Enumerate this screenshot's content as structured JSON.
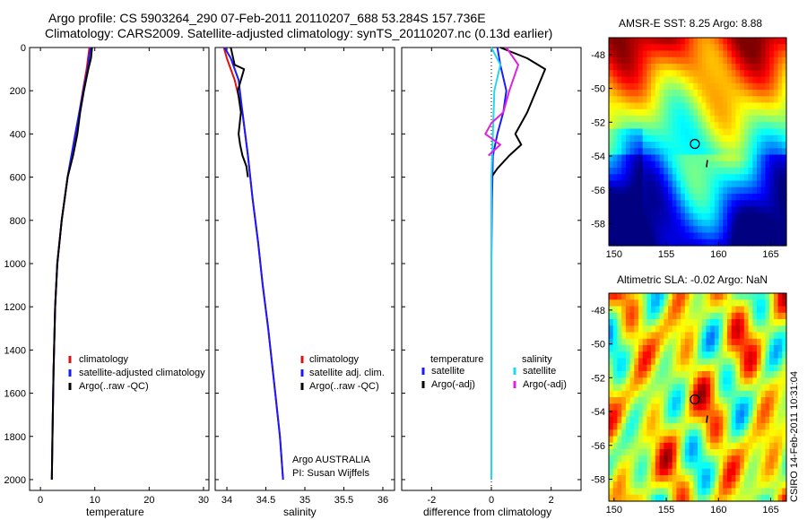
{
  "header": {
    "line1": "Argo profile: CS 5903264_290 07-Feb-2011 20110207_688 53.284S 157.736E",
    "line2": "Climatology: CARS2009. Satellite-adjusted climatology: synTS_20110207.nc (0.13d earlier)"
  },
  "colors": {
    "climatology": "#e01010",
    "satellite": "#1a1aff",
    "argo": "#000000",
    "sal_satellite": "#22d8f0",
    "sal_argo": "#e020e0"
  },
  "panels": {
    "temperature": {
      "xlabel": "temperature"
    },
    "salinity": {
      "xlabel": "salinity"
    },
    "difference": {
      "xlabel": "difference from climatology"
    },
    "sst_map": {
      "title": "AMSR-E SST: 8.25  Argo: 8.88"
    },
    "sla_map": {
      "title": "Altimetric SLA: -0.02  Argo: NaN"
    }
  },
  "credit": "CSIRO 14-Feb-2011 10:31:04",
  "chart_data": [
    {
      "type": "line",
      "panel": "temperature",
      "xlabel": "temperature",
      "xlim": [
        -2,
        31
      ],
      "ylim": [
        2050,
        0
      ],
      "xticks": [
        "0",
        "10",
        "20",
        "30"
      ],
      "yticks": [
        "0",
        "200",
        "400",
        "600",
        "800",
        "1000",
        "1200",
        "1400",
        "1600",
        "1800",
        "2000"
      ],
      "legend": [
        "climatology",
        "satellite-adjusted climatology",
        "Argo(..raw -QC)"
      ],
      "series": [
        {
          "name": "climatology",
          "x": [
            9.0,
            8.5,
            7.8,
            6.5,
            5.0,
            3.9,
            3.1,
            2.7,
            2.4,
            2.2,
            2.1
          ],
          "y": [
            0,
            100,
            200,
            400,
            600,
            800,
            1000,
            1200,
            1500,
            1800,
            2000
          ]
        },
        {
          "name": "satellite-adjusted climatology",
          "x": [
            9.2,
            8.7,
            7.9,
            6.4,
            5.0,
            3.9,
            3.1,
            2.7,
            2.4,
            2.2,
            2.1
          ],
          "y": [
            0,
            100,
            200,
            400,
            600,
            800,
            1000,
            1200,
            1500,
            1800,
            2000
          ]
        },
        {
          "name": "Argo(..raw -QC)",
          "x": [
            9.5,
            9.3,
            8.8,
            8.0,
            7.3,
            6.8,
            6.0,
            5.0,
            3.9,
            3.1,
            2.7,
            2.4,
            2.2,
            2.1
          ],
          "y": [
            0,
            50,
            100,
            200,
            300,
            400,
            500,
            600,
            800,
            1000,
            1200,
            1500,
            1800,
            2000
          ]
        }
      ]
    },
    {
      "type": "line",
      "panel": "salinity",
      "xlabel": "salinity",
      "xlim": [
        33.85,
        36.15
      ],
      "ylim": [
        2050,
        0
      ],
      "xticks": [
        "34",
        "34.5",
        "35",
        "35.5",
        "36"
      ],
      "legend": [
        "climatology",
        "satellite adj. clim.",
        "Argo(..raw -QC)"
      ],
      "annotation": [
        "Argo AUSTRALIA",
        "PI: Susan Wijffels"
      ],
      "series": [
        {
          "name": "climatology",
          "x": [
            33.96,
            34.0,
            34.1,
            34.2,
            34.27,
            34.33,
            34.4,
            34.46,
            34.53,
            34.62,
            34.68,
            34.72
          ],
          "y": [
            0,
            50,
            150,
            300,
            500,
            700,
            900,
            1100,
            1300,
            1600,
            1800,
            2000
          ]
        },
        {
          "name": "satellite adj. clim.",
          "x": [
            33.97,
            34.05,
            34.15,
            34.2,
            34.27,
            34.33,
            34.4,
            34.46,
            34.53,
            34.62,
            34.68,
            34.72
          ],
          "y": [
            0,
            50,
            150,
            300,
            500,
            700,
            900,
            1100,
            1300,
            1600,
            1800,
            2000
          ]
        },
        {
          "name": "Argo(..raw -QC)",
          "x": [
            34.05,
            34.1,
            34.22,
            34.14,
            34.18,
            34.15,
            34.17,
            34.2,
            34.25,
            34.27
          ],
          "y": [
            0,
            80,
            100,
            200,
            300,
            400,
            450,
            500,
            550,
            600
          ]
        }
      ]
    },
    {
      "type": "line",
      "panel": "difference",
      "xlabel": "difference from climatology",
      "xlim": [
        -3,
        3
      ],
      "ylim": [
        2050,
        0
      ],
      "xticks": [
        "-2",
        "0",
        "2"
      ],
      "legend": [
        "temperature",
        "satellite",
        "Argo(-adj)",
        "salinity",
        "satellite",
        "Argo(-adj)"
      ],
      "series": [
        {
          "name": "temperature satellite",
          "x": [
            0.2,
            0.3,
            0.5,
            0.4,
            0.2,
            0.05,
            0.02,
            0.0,
            0.0,
            0.0
          ],
          "y": [
            0,
            80,
            200,
            300,
            400,
            500,
            700,
            1000,
            1500,
            2000
          ]
        },
        {
          "name": "temperature Argo(-adj)",
          "x": [
            0.3,
            1.2,
            1.8,
            1.5,
            1.2,
            0.8,
            1.0,
            0.6,
            0.2,
            0.0
          ],
          "y": [
            0,
            50,
            100,
            200,
            300,
            400,
            450,
            500,
            560,
            600
          ]
        },
        {
          "name": "salinity satellite",
          "x": [
            0.0,
            0.3,
            0.1,
            0.05,
            0.0,
            0.0,
            0.0,
            0.0
          ],
          "y": [
            0,
            80,
            200,
            400,
            600,
            800,
            1200,
            2000
          ]
        },
        {
          "name": "salinity Argo(-adj)",
          "x": [
            0.5,
            0.9,
            0.6,
            0.4,
            0.0,
            -0.2,
            0.3,
            -0.1
          ],
          "y": [
            0,
            80,
            200,
            300,
            350,
            400,
            450,
            500
          ]
        }
      ]
    },
    {
      "type": "heatmap",
      "panel": "sst_map",
      "title": "AMSR-E SST: 8.25  Argo: 8.88",
      "xticks": [
        "150",
        "155",
        "160",
        "165"
      ],
      "yticks": [
        "-48",
        "-50",
        "-52",
        "-54",
        "-56",
        "-58"
      ],
      "xlim": [
        149.5,
        166.5
      ],
      "ylim": [
        -59.3,
        -47.0
      ],
      "marker": {
        "lon": 157.736,
        "lat": -53.284
      }
    },
    {
      "type": "heatmap",
      "panel": "sla_map",
      "title": "Altimetric SLA: -0.02  Argo: NaN",
      "xticks": [
        "150",
        "155",
        "160",
        "165"
      ],
      "yticks": [
        "-48",
        "-50",
        "-52",
        "-54",
        "-56",
        "-58"
      ],
      "xlim": [
        149.5,
        166.5
      ],
      "ylim": [
        -59.3,
        -47.0
      ],
      "marker": {
        "lon": 157.736,
        "lat": -53.284
      }
    }
  ]
}
